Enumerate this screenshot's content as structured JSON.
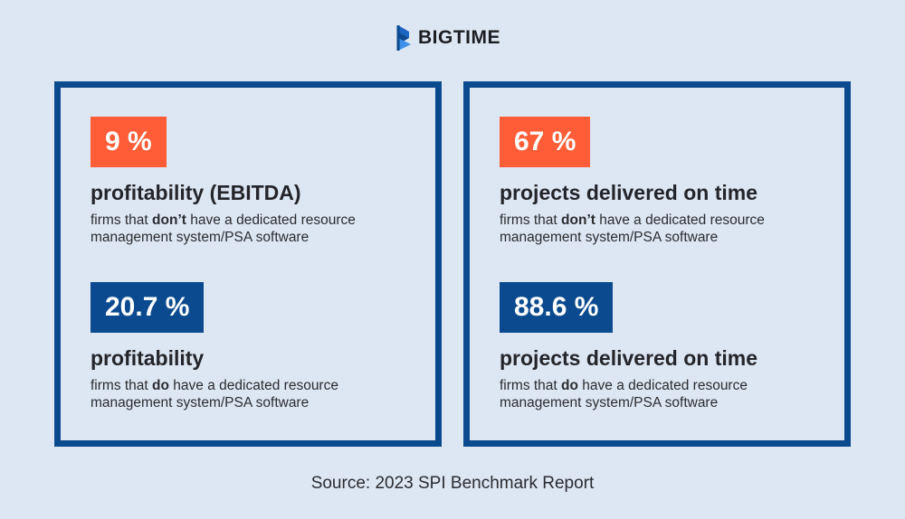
{
  "header": {
    "logo_text": "BIGTIME",
    "logo_icon": "bigtime-b-play-icon",
    "brand_color": "#0b4a8e"
  },
  "colors": {
    "background": "#dde6f3",
    "accent_orange": "#ff5d37",
    "accent_blue": "#0b4a8e"
  },
  "cards": [
    {
      "stats": [
        {
          "value": "9 %",
          "title": "profitability (EBITDA)",
          "desc_prefix": "firms that ",
          "desc_bold": "don’t",
          "desc_suffix": " have a dedicated resource management system/PSA software"
        },
        {
          "value": "20.7 %",
          "title": "profitability",
          "desc_prefix": "firms that ",
          "desc_bold": "do",
          "desc_suffix": " have a dedicated resource management system/PSA software"
        }
      ]
    },
    {
      "stats": [
        {
          "value": "67 %",
          "title": "projects delivered on time",
          "desc_prefix": "firms that ",
          "desc_bold": "don’t",
          "desc_suffix": " have a dedicated resource management system/PSA software"
        },
        {
          "value": "88.6 %",
          "title": "projects delivered on time",
          "desc_prefix": "firms that ",
          "desc_bold": "do",
          "desc_suffix": " have a dedicated resource management system/PSA software"
        }
      ]
    }
  ],
  "footer": {
    "source": "Source: 2023 SPI Benchmark Report"
  }
}
